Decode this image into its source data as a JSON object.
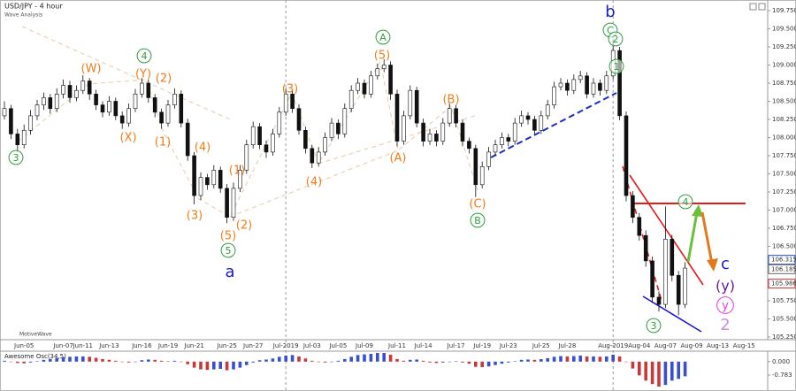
{
  "chart_data": {
    "type": "candlestick",
    "title": "USD/JPY - 4 hour",
    "subtitle": "Wave Analysis",
    "watermark": "MotiveWave",
    "categories": [
      null,
      null,
      null,
      "Jun-05",
      null,
      null,
      null,
      null,
      null,
      "Jun-07",
      null,
      null,
      "Jun-11",
      null,
      null,
      null,
      "Jun-13",
      null,
      null,
      null,
      null,
      "Jun-16",
      null,
      null,
      null,
      "Jun-19",
      null,
      null,
      null,
      "Jun-21",
      null,
      null,
      null,
      null,
      "Jun-25",
      null,
      null,
      null,
      "Jun-27",
      null,
      null,
      null,
      null,
      "Jul-2019",
      null,
      null,
      null,
      "Jul-03",
      null,
      null,
      null,
      "Jul-05",
      null,
      null,
      null,
      "Jul-09",
      null,
      null,
      null,
      null,
      "Jul-11",
      null,
      null,
      null,
      "Jul-14",
      null,
      null,
      null,
      null,
      "Jul-17",
      null,
      null,
      null,
      "Jul-19",
      null,
      null,
      null,
      "Jul-23",
      null,
      null,
      null,
      null,
      "Jul-25",
      null,
      null,
      null,
      "Jul-28",
      null,
      null,
      null,
      null,
      null,
      null,
      "Aug-2019",
      null,
      null,
      null,
      "Aug-04",
      null,
      null,
      null,
      "Aug-07",
      null,
      null,
      null,
      "Aug-09",
      null,
      null,
      null,
      "Aug-13",
      null,
      null,
      null,
      "Aug-15",
      null,
      null
    ],
    "open": [
      108.3,
      108.4,
      108.05,
      107.9,
      108.1,
      108.3,
      108.45,
      108.55,
      108.4,
      108.6,
      108.72,
      108.55,
      108.65,
      108.78,
      108.6,
      108.45,
      108.35,
      108.5,
      108.3,
      108.2,
      108.4,
      108.6,
      108.75,
      108.55,
      108.35,
      108.2,
      108.45,
      108.6,
      108.2,
      107.75,
      107.2,
      107.45,
      107.35,
      107.55,
      107.3,
      106.9,
      107.3,
      107.55,
      107.9,
      108.15,
      107.9,
      107.8,
      108.05,
      108.35,
      108.6,
      108.4,
      108.1,
      107.85,
      107.65,
      107.8,
      108.0,
      108.2,
      108.05,
      108.4,
      108.65,
      108.75,
      108.6,
      108.85,
      108.95,
      109.0,
      108.6,
      107.95,
      108.3,
      108.65,
      108.2,
      107.95,
      108.05,
      107.95,
      108.2,
      108.4,
      108.2,
      107.95,
      107.85,
      107.35,
      107.6,
      107.8,
      107.9,
      108.0,
      107.95,
      108.2,
      108.3,
      108.25,
      108.1,
      108.3,
      108.45,
      108.7,
      108.75,
      108.65,
      108.8,
      108.85,
      108.6,
      108.75,
      108.65,
      108.85,
      109.2,
      108.3,
      107.2,
      106.9,
      106.65,
      106.3,
      105.8,
      105.7,
      106.6,
      106.1,
      105.7,
      null,
      null,
      null,
      null,
      null,
      null,
      null,
      null,
      null,
      null,
      null
    ],
    "high": [
      108.5,
      108.45,
      108.12,
      108.18,
      108.38,
      108.52,
      108.62,
      108.6,
      108.68,
      108.8,
      108.78,
      108.72,
      108.86,
      108.82,
      108.66,
      108.5,
      108.57,
      108.55,
      108.36,
      108.47,
      108.67,
      108.82,
      108.8,
      108.6,
      108.4,
      108.52,
      108.68,
      108.65,
      108.26,
      107.8,
      107.52,
      107.5,
      107.62,
      107.6,
      107.36,
      107.38,
      107.62,
      107.97,
      108.22,
      108.2,
      107.96,
      108.12,
      108.42,
      108.68,
      108.65,
      108.46,
      108.15,
      107.9,
      107.87,
      108.07,
      108.27,
      108.25,
      108.47,
      108.72,
      108.82,
      108.8,
      108.92,
      109.02,
      109.08,
      109.05,
      108.66,
      108.37,
      108.72,
      108.7,
      108.26,
      108.12,
      108.1,
      108.27,
      108.47,
      108.45,
      108.25,
      108.0,
      107.9,
      107.67,
      107.87,
      107.97,
      108.07,
      108.05,
      108.27,
      108.37,
      108.35,
      108.3,
      108.37,
      108.52,
      108.77,
      108.82,
      108.8,
      108.87,
      108.92,
      108.9,
      108.82,
      108.8,
      108.92,
      109.35,
      109.25,
      108.36,
      107.26,
      106.96,
      106.72,
      106.36,
      105.88,
      107.05,
      106.66,
      106.16,
      106.28,
      null,
      null,
      null,
      null,
      null,
      null,
      null,
      null,
      null,
      null,
      null
    ],
    "low": [
      108.25,
      107.98,
      107.8,
      107.85,
      108.04,
      108.24,
      108.38,
      108.33,
      108.35,
      108.54,
      108.48,
      108.5,
      108.6,
      108.52,
      108.38,
      108.28,
      108.3,
      108.24,
      108.12,
      108.15,
      108.35,
      108.55,
      108.48,
      108.28,
      108.12,
      108.15,
      108.4,
      108.14,
      107.68,
      107.08,
      107.14,
      107.28,
      107.3,
      107.24,
      106.82,
      106.85,
      107.25,
      107.5,
      107.85,
      107.84,
      107.72,
      107.75,
      108.0,
      108.3,
      108.34,
      108.04,
      107.78,
      107.58,
      107.6,
      107.75,
      107.95,
      107.98,
      108.0,
      108.35,
      108.6,
      108.54,
      108.55,
      108.8,
      108.9,
      108.52,
      107.88,
      107.9,
      108.25,
      108.14,
      107.88,
      107.9,
      107.88,
      107.9,
      108.15,
      108.14,
      107.88,
      107.78,
      107.18,
      107.3,
      107.55,
      107.75,
      107.85,
      107.88,
      107.9,
      108.15,
      108.18,
      108.04,
      108.05,
      108.25,
      108.4,
      108.65,
      108.58,
      108.6,
      108.75,
      108.54,
      108.55,
      108.58,
      108.6,
      108.8,
      108.24,
      107.12,
      106.82,
      106.58,
      106.22,
      105.72,
      105.6,
      105.65,
      106.02,
      105.55,
      105.65,
      null,
      null,
      null,
      null,
      null,
      null,
      null,
      null,
      null,
      null,
      null
    ],
    "close": [
      108.4,
      108.05,
      107.9,
      108.1,
      108.3,
      108.45,
      108.55,
      108.4,
      108.6,
      108.72,
      108.55,
      108.65,
      108.78,
      108.6,
      108.45,
      108.35,
      108.5,
      108.3,
      108.2,
      108.4,
      108.6,
      108.75,
      108.55,
      108.35,
      108.2,
      108.45,
      108.6,
      108.2,
      107.75,
      107.2,
      107.45,
      107.35,
      107.55,
      107.3,
      106.9,
      107.3,
      107.55,
      107.9,
      108.15,
      107.9,
      107.8,
      108.05,
      108.35,
      108.6,
      108.4,
      108.1,
      107.85,
      107.65,
      107.8,
      108.0,
      108.2,
      108.05,
      108.4,
      108.65,
      108.75,
      108.6,
      108.85,
      108.95,
      109.0,
      108.6,
      107.95,
      108.3,
      108.65,
      108.2,
      107.95,
      108.05,
      107.95,
      108.2,
      108.4,
      108.2,
      107.95,
      107.85,
      107.35,
      107.6,
      107.8,
      107.9,
      108.0,
      107.95,
      108.2,
      108.3,
      108.25,
      108.1,
      108.3,
      108.45,
      108.7,
      108.75,
      108.65,
      108.8,
      108.85,
      108.6,
      108.75,
      108.65,
      108.85,
      109.2,
      108.3,
      107.2,
      106.9,
      106.65,
      106.3,
      105.8,
      105.7,
      106.6,
      106.1,
      105.7,
      106.2,
      null,
      null,
      null,
      null,
      null,
      null,
      null,
      null,
      null,
      null,
      null
    ],
    "up_color": "#ffffff",
    "down_color": "#111111",
    "ylim": [
      105.25,
      109.75
    ],
    "yticks": [
      {
        "value": 109.75,
        "label": "109.750"
      },
      {
        "value": 109.5,
        "label": "109.500"
      },
      {
        "value": 109.25,
        "label": "109.250"
      },
      {
        "value": 109.0,
        "label": "109.000"
      },
      {
        "value": 108.75,
        "label": "108.750"
      },
      {
        "value": 108.5,
        "label": "108.500"
      },
      {
        "value": 108.25,
        "label": "108.250"
      },
      {
        "value": 108.0,
        "label": "108.000"
      },
      {
        "value": 107.75,
        "label": "107.750"
      },
      {
        "value": 107.5,
        "label": "107.500"
      },
      {
        "value": 107.25,
        "label": "107.250"
      },
      {
        "value": 107.0,
        "label": "107.000"
      },
      {
        "value": 106.75,
        "label": "106.750"
      },
      {
        "value": 106.5,
        "label": "106.500"
      },
      {
        "value": 105.75,
        "label": "105.750"
      },
      {
        "value": 105.5,
        "label": "105.500"
      },
      {
        "value": 105.25,
        "label": "105.250"
      }
    ],
    "price_markers": [
      {
        "value": 106.315,
        "label": "106.315",
        "color": "#2346c0"
      },
      {
        "value": 106.185,
        "label": "106.185",
        "color": "#666666"
      },
      {
        "value": 105.986,
        "label": "105.986",
        "color": "#c03030"
      }
    ],
    "annotations": [
      {
        "text": "3",
        "color": "#2e9e3e",
        "circled": true
      },
      {
        "text": "(W)",
        "color": "#f07d1a",
        "circled": false
      },
      {
        "text": "4",
        "color": "#2e9e3e",
        "circled": true
      },
      {
        "text": "(Y)",
        "color": "#f07d1a",
        "circled": false
      },
      {
        "text": "(2)",
        "color": "#f07d1a",
        "circled": false
      },
      {
        "text": "(X)",
        "color": "#f07d1a",
        "circled": false
      },
      {
        "text": "(1)",
        "color": "#f07d1a",
        "circled": false
      },
      {
        "text": "(4)",
        "color": "#f07d1a",
        "circled": false
      },
      {
        "text": "(3)",
        "color": "#f07d1a",
        "circled": false
      },
      {
        "text": "(1)",
        "color": "#f07d1a",
        "circled": false
      },
      {
        "text": "(5)",
        "color": "#f07d1a",
        "circled": false
      },
      {
        "text": "(2)",
        "color": "#f07d1a",
        "circled": false
      },
      {
        "text": "5",
        "color": "#2e9e3e",
        "circled": true
      },
      {
        "text": "a",
        "color": "#1a1acc",
        "circled": false
      },
      {
        "text": "(3)",
        "color": "#f07d1a",
        "circled": false
      },
      {
        "text": "(4)",
        "color": "#f07d1a",
        "circled": false
      },
      {
        "text": "A",
        "color": "#2e9e3e",
        "circled": true
      },
      {
        "text": "(5)",
        "color": "#f07d1a",
        "circled": false
      },
      {
        "text": "(A)",
        "color": "#f07d1a",
        "circled": false
      },
      {
        "text": "(B)",
        "color": "#f07d1a",
        "circled": false
      },
      {
        "text": "(C)",
        "color": "#f07d1a",
        "circled": false
      },
      {
        "text": "B",
        "color": "#2e9e3e",
        "circled": true
      },
      {
        "text": "b",
        "color": "#1a1acc",
        "circled": false
      },
      {
        "text": "C",
        "color": "#2e9e3e",
        "circled": true
      },
      {
        "text": "2",
        "color": "#2e9e3e",
        "circled": true
      },
      {
        "text": "1",
        "color": "#2e9e3e",
        "circled": true
      },
      {
        "text": "4",
        "color": "#2e9e3e",
        "circled": true
      },
      {
        "text": "3",
        "color": "#2e9e3e",
        "circled": true
      },
      {
        "text": "c",
        "color": "#1a1acc",
        "circled": false
      },
      {
        "text": "(y)",
        "color": "#6a1b8a",
        "circled": false
      },
      {
        "text": "y",
        "color": "#e040e0",
        "circled": true
      },
      {
        "text": "2",
        "color": "#c890e0",
        "circled": false
      }
    ],
    "oscillator": {
      "title": "Awesome Osc(34,5)",
      "up_color": "#3a4fd0",
      "down_color": "#c83a3a",
      "ylim": [
        -1.6,
        0.45
      ],
      "yticks": [
        {
          "value": 0,
          "label": "0.000"
        },
        {
          "value": -0.783,
          "label": "-0.783"
        }
      ],
      "values": [
        0.05,
        0.0,
        -0.08,
        -0.1,
        -0.05,
        0.02,
        0.1,
        0.15,
        0.2,
        0.25,
        0.28,
        0.3,
        0.3,
        0.28,
        0.22,
        0.15,
        0.1,
        0.05,
        -0.02,
        -0.05,
        0.0,
        0.08,
        0.12,
        0.1,
        0.05,
        0.02,
        0.05,
        0.0,
        -0.15,
        -0.35,
        -0.45,
        -0.48,
        -0.45,
        -0.42,
        -0.5,
        -0.45,
        -0.35,
        -0.2,
        -0.05,
        0.08,
        0.12,
        0.18,
        0.28,
        0.35,
        0.38,
        0.3,
        0.18,
        0.05,
        -0.02,
        -0.05,
        0.0,
        0.05,
        0.15,
        0.28,
        0.38,
        0.42,
        0.45,
        0.5,
        0.5,
        0.4,
        0.15,
        0.05,
        0.1,
        0.12,
        0.05,
        -0.05,
        -0.08,
        -0.05,
        0.0,
        0.02,
        -0.05,
        -0.12,
        -0.3,
        -0.32,
        -0.28,
        -0.2,
        -0.12,
        -0.05,
        0.02,
        0.1,
        0.12,
        0.1,
        0.14,
        0.2,
        0.28,
        0.32,
        0.3,
        0.32,
        0.35,
        0.3,
        0.3,
        0.28,
        0.3,
        0.4,
        0.3,
        0.0,
        -0.4,
        -0.8,
        -1.1,
        -1.3,
        -1.45,
        -1.35,
        -1.1,
        -1.0,
        -0.85,
        null,
        null,
        null,
        null,
        null,
        null,
        null,
        null,
        null,
        null,
        null
      ]
    }
  }
}
